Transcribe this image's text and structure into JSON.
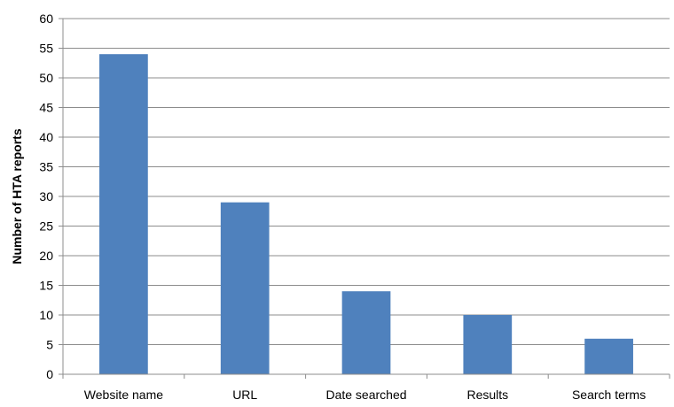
{
  "chart_data": {
    "type": "bar",
    "title": "",
    "xlabel": "",
    "ylabel": "Number of HTA reports",
    "categories": [
      "Website name",
      "URL",
      "Date searched",
      "Results",
      "Search terms"
    ],
    "values": [
      54,
      29,
      14,
      10,
      6
    ],
    "ylim": [
      0,
      60
    ],
    "yticks": [
      "0",
      "5",
      "10",
      "15",
      "20",
      "25",
      "30",
      "35",
      "40",
      "45",
      "50",
      "55",
      "60"
    ],
    "grid": true,
    "legend": "none",
    "colors": {
      "bar": "#4f81bd",
      "grid": "#8c8c8c",
      "axis": "#8c8c8c",
      "text": "#000000"
    }
  }
}
